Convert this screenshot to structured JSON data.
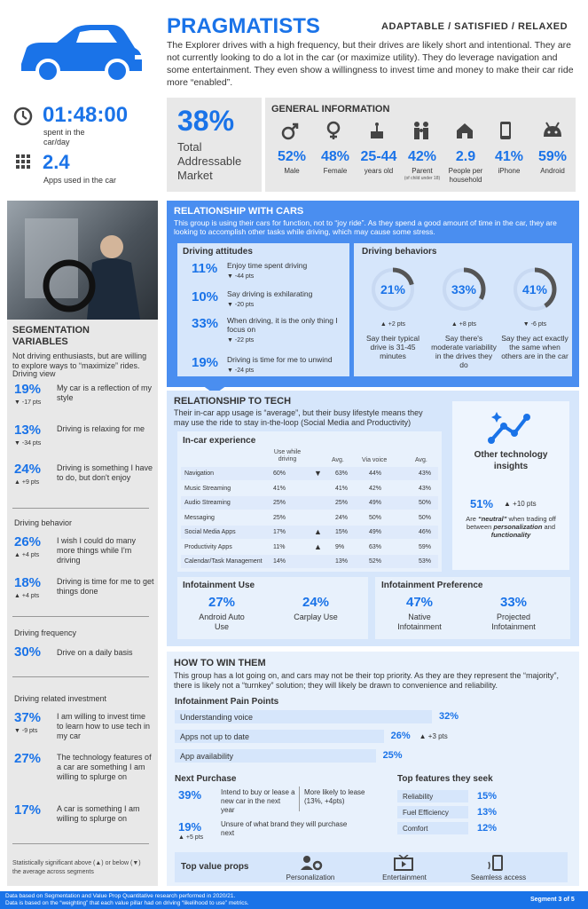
{
  "header": {
    "title": "PRAGMATISTS",
    "tags": "ADAPTABLE / SATISFIED / RELAXED",
    "desc": "The Explorer drives with a high frequency, but their drives are likely short and intentional. They are not currently looking to do a lot in the car (or maximize utility). They do leverage navigation and some entertainment. They even show a willingness to invest time and money to make their car ride more “enabled”."
  },
  "stats": {
    "time": "01:48:00",
    "time_label": "spent in the car/day",
    "apps": "2.4",
    "apps_label": "Apps used in the car",
    "tam": "38%",
    "tam_label": "Total Addressable Market"
  },
  "general": {
    "title": "GENERAL INFORMATION",
    "items": [
      {
        "icon": "male-icon",
        "value": "52%",
        "label": "Male",
        "note": ""
      },
      {
        "icon": "female-icon",
        "value": "48%",
        "label": "Female",
        "note": ""
      },
      {
        "icon": "cake-icon",
        "value": "25-44",
        "label": "years old",
        "note": ""
      },
      {
        "icon": "family-icon",
        "value": "42%",
        "label": "Parent",
        "note": "(of child under 18)"
      },
      {
        "icon": "house-icon",
        "value": "2.9",
        "label": "People per household",
        "note": ""
      },
      {
        "icon": "phone-icon",
        "value": "41%",
        "label": "iPhone",
        "note": ""
      },
      {
        "icon": "android-icon",
        "value": "59%",
        "label": "Android",
        "note": ""
      }
    ]
  },
  "seg": {
    "title": "SEGMENTATION VARIABLES",
    "subtitle": "Not driving enthusiasts, but are willing to explore ways to “maximize” rides.",
    "view_label": "Driving view",
    "view": [
      {
        "pct": "19%",
        "text": "My car is a reflection of my style",
        "delta": "▼ -17 pts"
      },
      {
        "pct": "13%",
        "text": "Driving is relaxing for me",
        "delta": "▼ -34 pts"
      },
      {
        "pct": "24%",
        "text": "Driving is something I have to do, but don't enjoy",
        "delta": "▲ +9 pts"
      }
    ],
    "behavior_label": "Driving behavior",
    "behavior": [
      {
        "pct": "26%",
        "text": "I wish I could do many more things while I'm driving",
        "delta": "▲ +4 pts"
      },
      {
        "pct": "18%",
        "text": "Driving is time for me to get things done",
        "delta": "▲ +4 pts"
      }
    ],
    "freq_label": "Driving frequency",
    "freq": {
      "pct": "30%",
      "text": "Drive on a daily basis"
    },
    "invest_label": "Driving related investment",
    "invest": [
      {
        "pct": "37%",
        "text": "I am willing to invest time to learn how to use tech in my car",
        "delta": "▼ -9 pts"
      },
      {
        "pct": "27%",
        "text": "The technology features of a car are something I am willing to splurge on",
        "delta": ""
      },
      {
        "pct": "17%",
        "text": "A car is something I am willing to splurge on",
        "delta": ""
      }
    ],
    "footnote": "Statistically significant above (▲) or below (▼) the average across segments"
  },
  "cars": {
    "title": "RELATIONSHIP WITH CARS",
    "desc": "This group is using their cars for function, not to “joy ride”. As they spend a good amount of time in the car, they are looking to accomplish other tasks while driving, which may cause some stress.",
    "att_title": "Driving attitudes",
    "attitudes": [
      {
        "pct": "11%",
        "text": "Enjoy time spent driving",
        "delta": "▼ -44 pts"
      },
      {
        "pct": "10%",
        "text": "Say driving is exhilarating",
        "delta": "▼ -20 pts"
      },
      {
        "pct": "33%",
        "text": "When driving, it is the only thing I focus on",
        "delta": "▼ -22 pts"
      },
      {
        "pct": "19%",
        "text": "Driving is time for me to unwind",
        "delta": "▼ -24 pts"
      }
    ],
    "beh_title": "Driving behaviors",
    "behaviors": [
      {
        "pct": "21%",
        "value": 21,
        "delta": "▲ +2 pts",
        "text": "Say their typical drive is 31-45 minutes"
      },
      {
        "pct": "33%",
        "value": 33,
        "delta": "▲ +8 pts",
        "text": "Say there's moderate variability in the drives they do"
      },
      {
        "pct": "41%",
        "value": 41,
        "delta": "▼ -6 pts",
        "text": "Say they act exactly the same when others are in the car"
      }
    ]
  },
  "tech": {
    "title": "RELATIONSHIP TO TECH",
    "desc": "Their in-car app usage is “average”, but their busy lifestyle means they may use the ride to stay in-the-loop (Social Media and Productivity)",
    "exp_title": "In-car experience",
    "col1": "Use while driving",
    "col2": "Avg.",
    "col3": "Via voice",
    "col4": "Avg.",
    "rows": [
      {
        "name": "Navigation",
        "a": "60%",
        "m1": "▼",
        "b": "63%",
        "c": "44%",
        "m2": "",
        "d": "43%"
      },
      {
        "name": "Music Streaming",
        "a": "41%",
        "m1": "",
        "b": "41%",
        "c": "42%",
        "m2": "",
        "d": "43%"
      },
      {
        "name": "Audio Streaming",
        "a": "25%",
        "m1": "",
        "b": "25%",
        "c": "49%",
        "m2": "",
        "d": "50%"
      },
      {
        "name": "Messaging",
        "a": "25%",
        "m1": "",
        "b": "24%",
        "c": "50%",
        "m2": "",
        "d": "50%"
      },
      {
        "name": "Social Media Apps",
        "a": "17%",
        "m1": "▲",
        "b": "15%",
        "c": "49%",
        "m2": "",
        "d": "46%"
      },
      {
        "name": "Productivity Apps",
        "a": "11%",
        "m1": "▲",
        "b": "9%",
        "c": "63%",
        "m2": "",
        "d": "59%"
      },
      {
        "name": "Calendar/Task Management",
        "a": "14%",
        "m1": "",
        "b": "13%",
        "c": "52%",
        "m2": "",
        "d": "53%"
      }
    ],
    "other_title": "Other technology insights",
    "other_pct": "51%",
    "other_delta": "▲ +10 pts",
    "other_text_1": "Are ",
    "other_text_em1": "“neutral”",
    "other_text_2": " when trading off between ",
    "other_text_em2": "personalization",
    "other_text_3": " and ",
    "other_text_em3": "functionality",
    "info_use_title": "Infotainment Use",
    "info_use": [
      {
        "pct": "27%",
        "label": "Android Auto Use"
      },
      {
        "pct": "24%",
        "label": "Carplay Use"
      }
    ],
    "info_pref_title": "Infotainment Preference",
    "info_pref": [
      {
        "pct": "47%",
        "label": "Native Infotainment"
      },
      {
        "pct": "33%",
        "label": "Projected Infotainment"
      }
    ]
  },
  "win": {
    "title": "HOW TO WIN THEM",
    "desc": "This group has a lot going on, and cars may not be their top priority. As they are they represent the “majority”, there is likely not a “turnkey” solution; they will likely be drawn to convenience and reliability.",
    "pain_title": "Infotainment Pain Points",
    "pains": [
      {
        "label": "Understanding voice",
        "pct": "32%",
        "value": 32,
        "delta": ""
      },
      {
        "label": "Apps not up to date",
        "pct": "26%",
        "value": 26,
        "delta": "▲ +3 pts"
      },
      {
        "label": "App availability",
        "pct": "25%",
        "value": 25,
        "delta": ""
      }
    ],
    "next_title": "Next Purchase",
    "next": [
      {
        "pct": "39%",
        "text": "Intend to buy or lease a new car in the next year",
        "extra": "More likely to lease (13%, +4pts)",
        "delta": ""
      },
      {
        "pct": "19%",
        "text": "Unsure of what brand they will purchase next",
        "extra": "",
        "delta": "▲ +5 pts"
      }
    ],
    "feat_title": "Top features they seek",
    "features": [
      {
        "label": "Reliability",
        "pct": "15%"
      },
      {
        "label": "Fuel Efficiency",
        "pct": "13%"
      },
      {
        "label": "Comfort",
        "pct": "12%"
      }
    ],
    "props_title": "Top value props",
    "props": [
      {
        "icon": "personalization-icon",
        "label": "Personalization"
      },
      {
        "icon": "entertainment-icon",
        "label": "Entertainment"
      },
      {
        "icon": "seamless-access-icon",
        "label": "Seamless access"
      }
    ]
  },
  "footer": {
    "line1": "Data based on Segmentation and Value Prop Quantitative research performed in 2020/21.",
    "line2": "Data is based on the “weighting” that each value pillar had on driving “likelihood to use” metrics.",
    "segment": "Segment 3 of 5"
  },
  "colors": {
    "blue": "#1a73e8",
    "light_blue": "#d6e6fb",
    "grey": "#e8e8e8"
  }
}
